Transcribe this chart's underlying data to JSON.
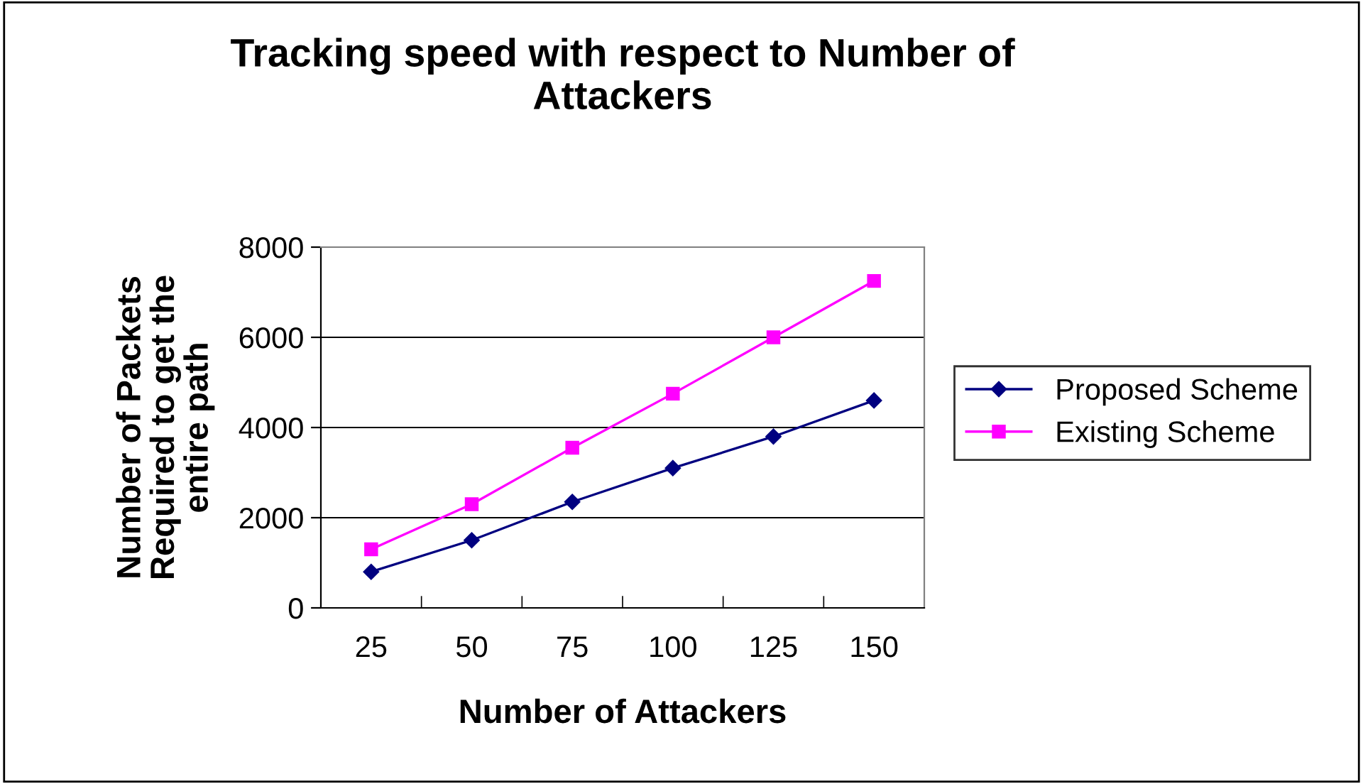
{
  "chart_data": {
    "type": "line",
    "title": "Tracking speed with respect to Number of\nAttackers",
    "xlabel": "Number of Attackers",
    "ylabel": "Number of Packets\nRequired to get the\nentire path",
    "categories": [
      "25",
      "50",
      "75",
      "100",
      "125",
      "150"
    ],
    "series": [
      {
        "name": "Proposed Scheme",
        "color": "#000080",
        "marker": "diamond",
        "values": [
          800,
          1500,
          2350,
          3100,
          3800,
          4600
        ]
      },
      {
        "name": "Existing Scheme",
        "color": "#ff00ff",
        "marker": "square",
        "values": [
          1300,
          2300,
          3550,
          4750,
          6000,
          7250
        ]
      }
    ],
    "ylim": [
      0,
      8000
    ],
    "yticks": [
      0,
      2000,
      4000,
      6000,
      8000
    ],
    "grid": "y",
    "legend": "right",
    "line_style": "solid"
  }
}
